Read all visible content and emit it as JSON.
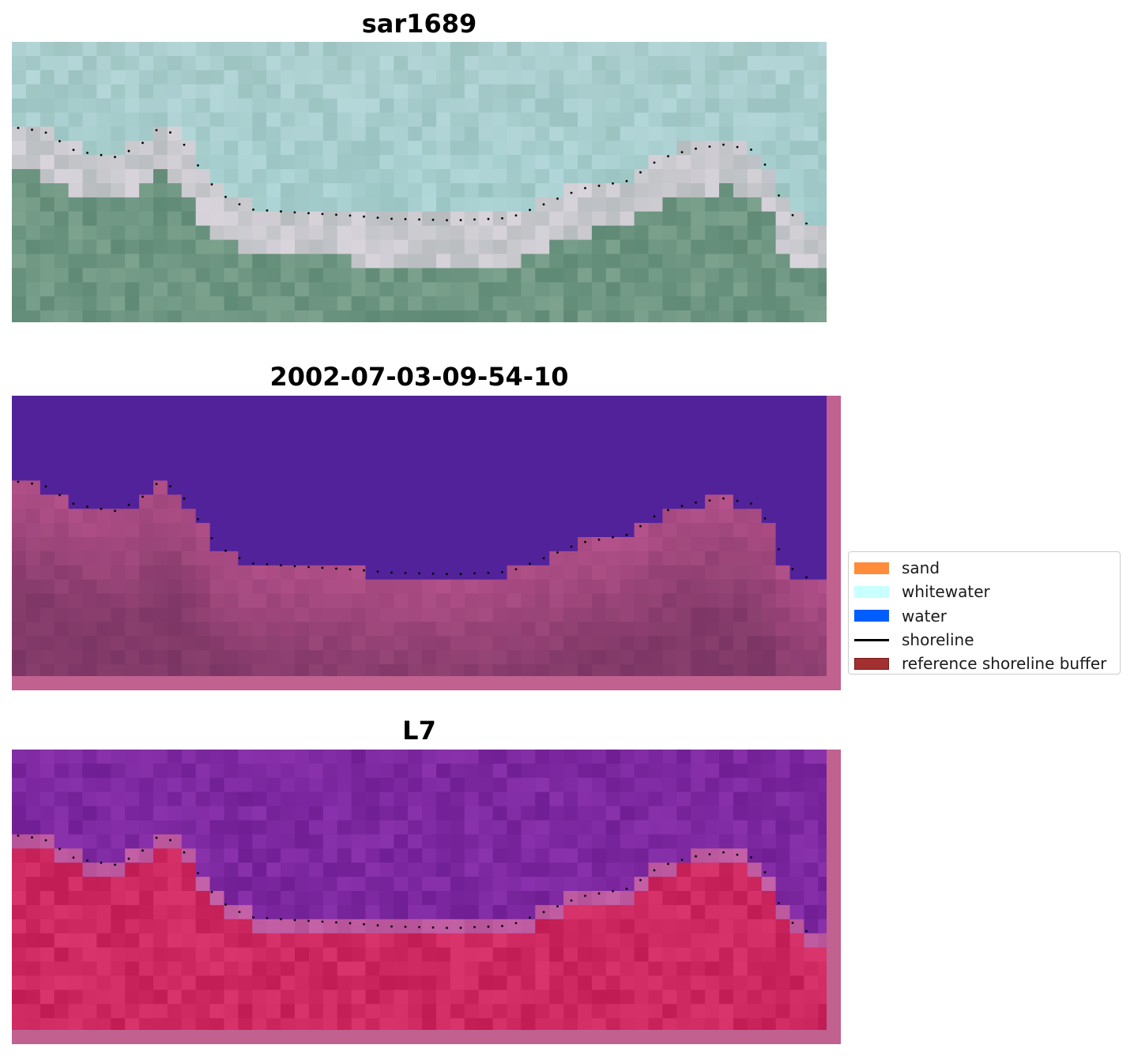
{
  "panels": [
    {
      "title": "sar1689",
      "palette": "rgb"
    },
    {
      "title": "2002-07-03-09-54-10",
      "palette": "classified"
    },
    {
      "title": "L7",
      "palette": "index"
    }
  ],
  "legend": {
    "items": [
      {
        "label": "sand",
        "color": "#ff8c3a",
        "kind": "patch"
      },
      {
        "label": "whitewater",
        "color": "#c8ffff",
        "kind": "patch"
      },
      {
        "label": "water",
        "color": "#005eff",
        "kind": "patch"
      },
      {
        "label": "shoreline",
        "color": "#000000",
        "kind": "line"
      },
      {
        "label": "reference shoreline buffer",
        "color": "#a33030",
        "kind": "patch"
      }
    ]
  },
  "colors": {
    "buffer_overlay": "#c0618f",
    "water_class": "#52229a",
    "land_class": "#b04c84",
    "shoreline_points": "#000000"
  }
}
